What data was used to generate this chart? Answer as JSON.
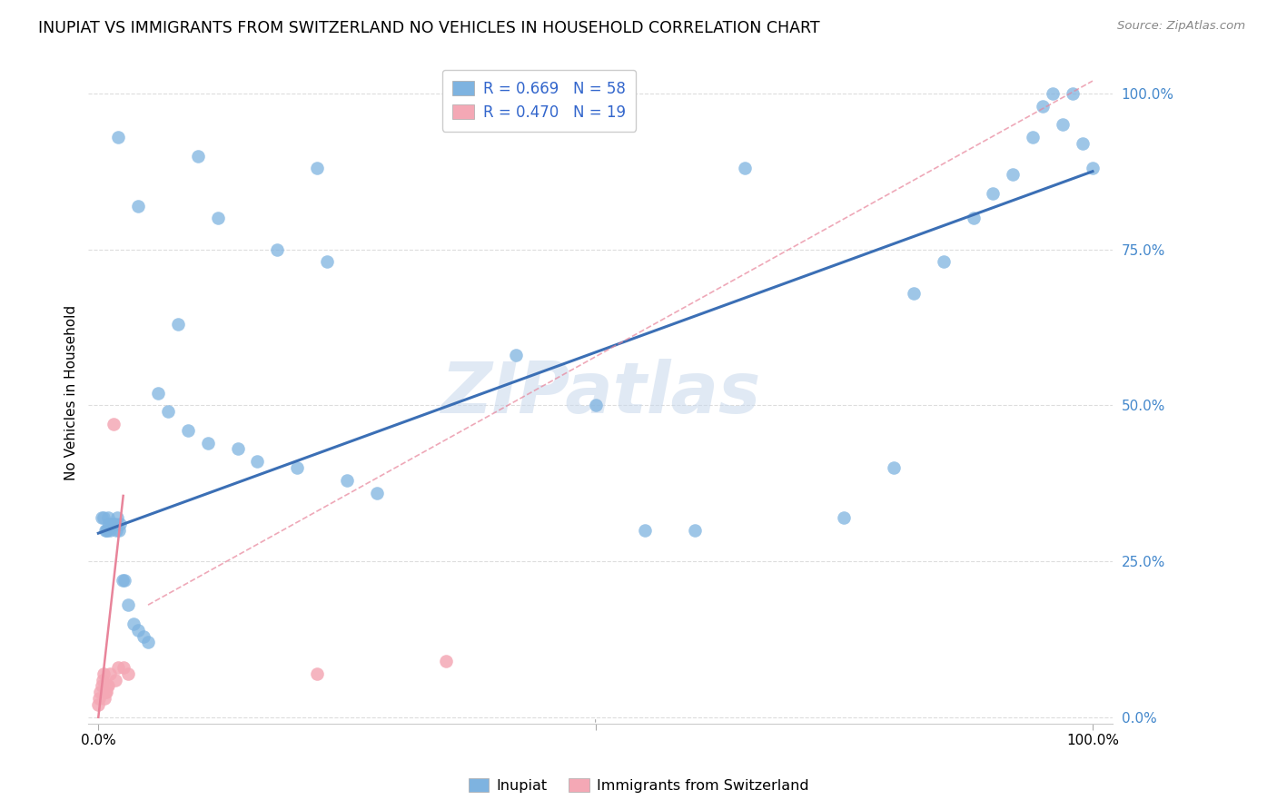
{
  "title": "INUPIAT VS IMMIGRANTS FROM SWITZERLAND NO VEHICLES IN HOUSEHOLD CORRELATION CHART",
  "source": "Source: ZipAtlas.com",
  "ylabel": "No Vehicles in Household",
  "ytick_labels": [
    "0.0%",
    "25.0%",
    "50.0%",
    "75.0%",
    "100.0%"
  ],
  "ytick_positions": [
    0.0,
    0.25,
    0.5,
    0.75,
    1.0
  ],
  "xtick_labels": [
    "0.0%",
    "",
    "",
    "",
    "",
    "100.0%"
  ],
  "xtick_positions": [
    0.0,
    0.2,
    0.4,
    0.5,
    0.6,
    1.0
  ],
  "xlim": [
    -0.01,
    1.02
  ],
  "ylim": [
    -0.01,
    1.05
  ],
  "color_inupiat": "#7EB3E0",
  "color_swiss": "#F4A8B5",
  "color_line_inupiat": "#3B6FB5",
  "color_line_swiss": "#E8849A",
  "color_ytick": "#4488CC",
  "watermark_text": "ZIPatlas",
  "inupiat_x": [
    0.02,
    0.1,
    0.22,
    0.65,
    0.04,
    0.12,
    0.18,
    0.23,
    0.08,
    0.42,
    0.06,
    0.07,
    0.09,
    0.11,
    0.14,
    0.16,
    0.2,
    0.25,
    0.28,
    0.5,
    0.55,
    0.6,
    0.75,
    0.8,
    0.82,
    0.85,
    0.88,
    0.9,
    0.92,
    0.94,
    0.95,
    0.96,
    0.97,
    0.98,
    0.99,
    1.0,
    0.003,
    0.005,
    0.007,
    0.008,
    0.009,
    0.01,
    0.011,
    0.012,
    0.013,
    0.015,
    0.017,
    0.018,
    0.019,
    0.021,
    0.022,
    0.024,
    0.026,
    0.03,
    0.035,
    0.04,
    0.045,
    0.05
  ],
  "inupiat_y": [
    0.93,
    0.9,
    0.88,
    0.88,
    0.82,
    0.8,
    0.75,
    0.73,
    0.63,
    0.58,
    0.52,
    0.49,
    0.46,
    0.44,
    0.43,
    0.41,
    0.4,
    0.38,
    0.36,
    0.5,
    0.3,
    0.3,
    0.32,
    0.4,
    0.68,
    0.73,
    0.8,
    0.84,
    0.87,
    0.93,
    0.98,
    1.0,
    0.95,
    1.0,
    0.92,
    0.88,
    0.32,
    0.32,
    0.3,
    0.3,
    0.3,
    0.32,
    0.31,
    0.3,
    0.31,
    0.31,
    0.31,
    0.3,
    0.32,
    0.3,
    0.31,
    0.22,
    0.22,
    0.18,
    0.15,
    0.14,
    0.13,
    0.12
  ],
  "swiss_x": [
    0.0,
    0.001,
    0.002,
    0.003,
    0.004,
    0.005,
    0.006,
    0.007,
    0.008,
    0.009,
    0.01,
    0.012,
    0.015,
    0.017,
    0.02,
    0.025,
    0.03,
    0.22,
    0.35
  ],
  "swiss_y": [
    0.02,
    0.03,
    0.04,
    0.05,
    0.06,
    0.07,
    0.03,
    0.04,
    0.04,
    0.05,
    0.05,
    0.07,
    0.47,
    0.06,
    0.08,
    0.08,
    0.07,
    0.07,
    0.09
  ],
  "blue_line_x0": 0.0,
  "blue_line_y0": 0.295,
  "blue_line_x1": 1.0,
  "blue_line_y1": 0.875,
  "pink_line_x0": 0.0,
  "pink_line_y0": 0.0,
  "pink_line_x1": 0.025,
  "pink_line_y1": 0.355,
  "dashed_line_x0": 0.05,
  "dashed_line_y0": 0.18,
  "dashed_line_x1": 1.0,
  "dashed_line_y1": 1.02
}
